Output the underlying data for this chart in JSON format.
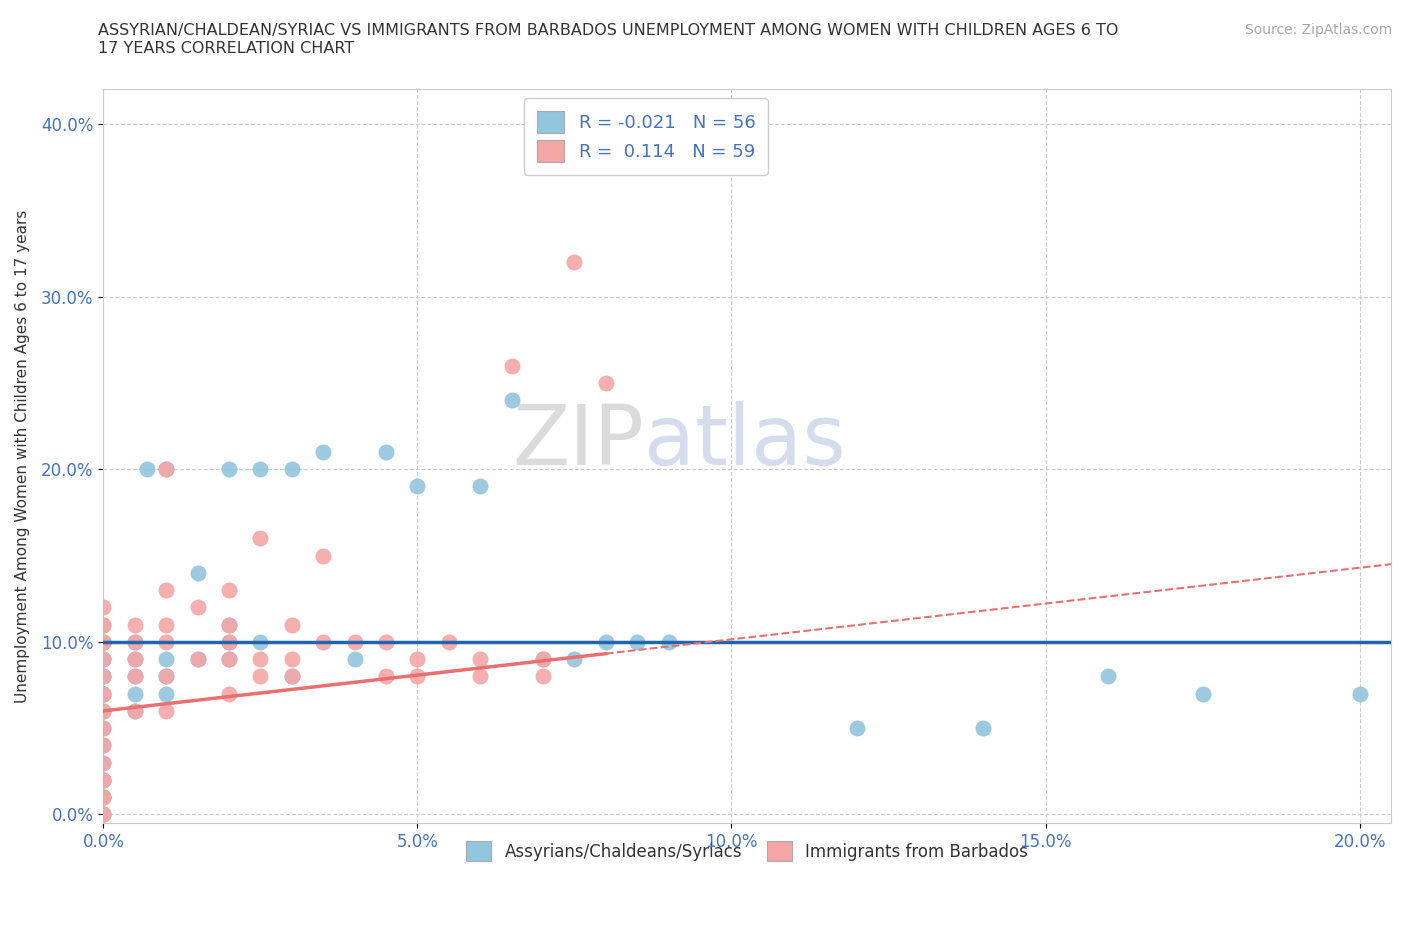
{
  "title": "ASSYRIAN/CHALDEAN/SYRIAC VS IMMIGRANTS FROM BARBADOS UNEMPLOYMENT AMONG WOMEN WITH CHILDREN AGES 6 TO\n17 YEARS CORRELATION CHART",
  "source": "Source: ZipAtlas.com",
  "xlim": [
    0.0,
    0.205
  ],
  "ylim": [
    -0.005,
    0.42
  ],
  "ylabel": "Unemployment Among Women with Children Ages 6 to 17 years",
  "series1_label": "Assyrians/Chaldeans/Syriacs",
  "series2_label": "Immigrants from Barbados",
  "series1_color": "#92C5DE",
  "series2_color": "#F4A6A6",
  "series1_line_color": "#2166AC",
  "series2_line_color": "#E8808080",
  "R1": -0.021,
  "N1": 56,
  "R2": 0.114,
  "N2": 59,
  "series1_x": [
    0.0,
    0.0,
    0.0,
    0.0,
    0.0,
    0.0,
    0.0,
    0.0,
    0.0,
    0.0,
    0.0,
    0.0,
    0.0,
    0.0,
    0.0,
    0.0,
    0.0,
    0.0,
    0.0,
    0.0,
    0.005,
    0.005,
    0.005,
    0.005,
    0.005,
    0.007,
    0.01,
    0.01,
    0.01,
    0.01,
    0.015,
    0.015,
    0.02,
    0.02,
    0.02,
    0.02,
    0.025,
    0.025,
    0.03,
    0.03,
    0.035,
    0.04,
    0.045,
    0.05,
    0.06,
    0.065,
    0.07,
    0.075,
    0.08,
    0.085,
    0.09,
    0.12,
    0.14,
    0.16,
    0.175,
    0.2
  ],
  "series1_y": [
    0.0,
    0.0,
    0.01,
    0.01,
    0.02,
    0.02,
    0.03,
    0.04,
    0.05,
    0.06,
    0.06,
    0.07,
    0.07,
    0.08,
    0.08,
    0.09,
    0.09,
    0.1,
    0.1,
    0.1,
    0.06,
    0.07,
    0.08,
    0.09,
    0.1,
    0.2,
    0.07,
    0.08,
    0.09,
    0.2,
    0.09,
    0.14,
    0.09,
    0.1,
    0.11,
    0.2,
    0.1,
    0.2,
    0.08,
    0.2,
    0.21,
    0.09,
    0.21,
    0.19,
    0.19,
    0.24,
    0.09,
    0.09,
    0.1,
    0.1,
    0.1,
    0.05,
    0.05,
    0.08,
    0.07,
    0.07
  ],
  "series2_x": [
    0.0,
    0.0,
    0.0,
    0.0,
    0.0,
    0.0,
    0.0,
    0.0,
    0.0,
    0.0,
    0.0,
    0.0,
    0.0,
    0.0,
    0.0,
    0.0,
    0.0,
    0.0,
    0.0,
    0.0,
    0.005,
    0.005,
    0.005,
    0.005,
    0.005,
    0.01,
    0.01,
    0.01,
    0.01,
    0.01,
    0.01,
    0.015,
    0.015,
    0.02,
    0.02,
    0.02,
    0.02,
    0.02,
    0.025,
    0.025,
    0.025,
    0.03,
    0.03,
    0.03,
    0.035,
    0.035,
    0.04,
    0.045,
    0.045,
    0.05,
    0.05,
    0.055,
    0.06,
    0.06,
    0.065,
    0.07,
    0.07,
    0.075,
    0.08
  ],
  "series2_y": [
    0.0,
    0.0,
    0.01,
    0.01,
    0.02,
    0.02,
    0.03,
    0.04,
    0.05,
    0.06,
    0.07,
    0.07,
    0.08,
    0.09,
    0.1,
    0.1,
    0.1,
    0.11,
    0.11,
    0.12,
    0.06,
    0.08,
    0.09,
    0.1,
    0.11,
    0.06,
    0.08,
    0.1,
    0.11,
    0.13,
    0.2,
    0.09,
    0.12,
    0.07,
    0.09,
    0.1,
    0.11,
    0.13,
    0.08,
    0.09,
    0.16,
    0.08,
    0.09,
    0.11,
    0.1,
    0.15,
    0.1,
    0.08,
    0.1,
    0.08,
    0.09,
    0.1,
    0.08,
    0.09,
    0.26,
    0.08,
    0.09,
    0.32,
    0.25
  ],
  "trend_y_start": 0.1,
  "trend_y_end": 0.1,
  "pink_trend_y_start": 0.06,
  "pink_trend_y_end": 0.145
}
